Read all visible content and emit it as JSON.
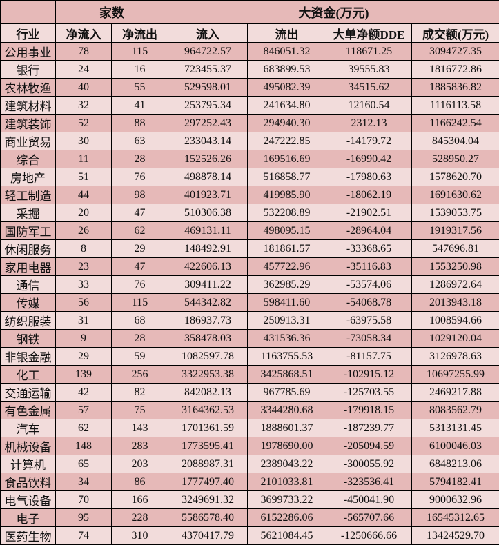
{
  "header": {
    "group_count": "家数",
    "group_funds": "大资金(万元)",
    "columns": [
      "行业",
      "净流入",
      "净流出",
      "流入",
      "流出",
      "大单净额DDE",
      "成交额(万元)"
    ]
  },
  "colors": {
    "dark_row": "#e6b9b8",
    "light_row": "#f2dcdb"
  },
  "rows": [
    [
      "公用事业",
      "78",
      "115",
      "964722.57",
      "846051.32",
      "118671.25",
      "3094727.35"
    ],
    [
      "银行",
      "24",
      "16",
      "723455.37",
      "683899.53",
      "39555.83",
      "1816772.86"
    ],
    [
      "农林牧渔",
      "40",
      "55",
      "529598.01",
      "495082.39",
      "34515.62",
      "1885836.82"
    ],
    [
      "建筑材料",
      "32",
      "41",
      "253795.34",
      "241634.80",
      "12160.54",
      "1116113.58"
    ],
    [
      "建筑装饰",
      "52",
      "88",
      "297252.43",
      "294940.30",
      "2312.13",
      "1166242.54"
    ],
    [
      "商业贸易",
      "30",
      "63",
      "233043.14",
      "247222.85",
      "-14179.72",
      "845304.04"
    ],
    [
      "综合",
      "11",
      "28",
      "152526.26",
      "169516.69",
      "-16990.42",
      "528950.27"
    ],
    [
      "房地产",
      "51",
      "76",
      "498878.14",
      "516858.77",
      "-17980.63",
      "1578620.70"
    ],
    [
      "轻工制造",
      "44",
      "98",
      "401923.71",
      "419985.90",
      "-18062.19",
      "1691630.62"
    ],
    [
      "采掘",
      "20",
      "47",
      "510306.38",
      "532208.89",
      "-21902.51",
      "1539053.75"
    ],
    [
      "国防军工",
      "26",
      "62",
      "469131.11",
      "498095.15",
      "-28964.04",
      "1919317.56"
    ],
    [
      "休闲服务",
      "8",
      "29",
      "148492.91",
      "181861.57",
      "-33368.65",
      "547696.81"
    ],
    [
      "家用电器",
      "23",
      "47",
      "422606.13",
      "457722.96",
      "-35116.83",
      "1553250.98"
    ],
    [
      "通信",
      "33",
      "76",
      "309411.22",
      "362985.29",
      "-53574.06",
      "1286972.64"
    ],
    [
      "传媒",
      "56",
      "115",
      "544342.82",
      "598411.60",
      "-54068.78",
      "2013943.18"
    ],
    [
      "纺织服装",
      "31",
      "68",
      "186937.73",
      "250913.31",
      "-63975.58",
      "1008594.66"
    ],
    [
      "钢铁",
      "9",
      "28",
      "358478.03",
      "431536.36",
      "-73058.34",
      "1029120.04"
    ],
    [
      "非银金融",
      "29",
      "59",
      "1082597.78",
      "1163755.53",
      "-81157.75",
      "3126978.63"
    ],
    [
      "化工",
      "139",
      "256",
      "3322953.38",
      "3425868.51",
      "-102915.12",
      "10697255.99"
    ],
    [
      "交通运输",
      "42",
      "82",
      "842082.13",
      "967785.69",
      "-125703.55",
      "2469217.88"
    ],
    [
      "有色金属",
      "57",
      "75",
      "3164362.53",
      "3344280.68",
      "-179918.15",
      "8083562.79"
    ],
    [
      "汽车",
      "62",
      "143",
      "1701361.59",
      "1888601.37",
      "-187239.77",
      "5313131.45"
    ],
    [
      "机械设备",
      "148",
      "283",
      "1773595.41",
      "1978690.00",
      "-205094.59",
      "6100046.03"
    ],
    [
      "计算机",
      "65",
      "203",
      "2088987.31",
      "2389043.22",
      "-300055.92",
      "6848213.06"
    ],
    [
      "食品饮料",
      "34",
      "86",
      "1777497.40",
      "2101033.81",
      "-323536.41",
      "5794182.41"
    ],
    [
      "电气设备",
      "70",
      "166",
      "3249691.32",
      "3699733.22",
      "-450041.90",
      "9000632.96"
    ],
    [
      "电子",
      "95",
      "228",
      "5586578.40",
      "6152286.06",
      "-565707.66",
      "16545312.65"
    ],
    [
      "医药生物",
      "74",
      "310",
      "4370417.79",
      "5621084.45",
      "-1250666.66",
      "13424529.70"
    ]
  ]
}
